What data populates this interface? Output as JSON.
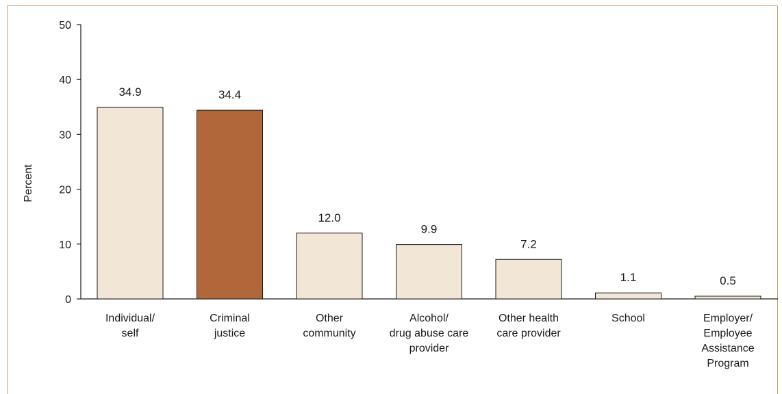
{
  "chart_data": {
    "type": "bar",
    "title": "",
    "xlabel": "",
    "ylabel": "Percent",
    "ylim": [
      0,
      50
    ],
    "yticks": [
      0,
      10,
      20,
      30,
      40,
      50
    ],
    "categories": [
      [
        "Individual/",
        "self"
      ],
      [
        "Criminal",
        "justice"
      ],
      [
        "Other",
        "community"
      ],
      [
        "Alcohol/",
        "drug abuse care",
        "provider"
      ],
      [
        "Other health",
        "care provider"
      ],
      [
        "School"
      ],
      [
        "Employer/",
        "Employee",
        "Assistance",
        "Program"
      ]
    ],
    "values": [
      34.9,
      34.4,
      12.0,
      9.9,
      7.2,
      1.1,
      0.5
    ],
    "data_labels": [
      "34.9",
      "34.4",
      "12.0",
      "9.9",
      "7.2",
      "1.1",
      "0.5"
    ],
    "highlight_index": 1,
    "colors": {
      "bar": "#f2e6d6",
      "highlight": "#b2673a",
      "bar_stroke": "#1a1a1a",
      "frame": "#d39a6a"
    },
    "grid": false
  }
}
